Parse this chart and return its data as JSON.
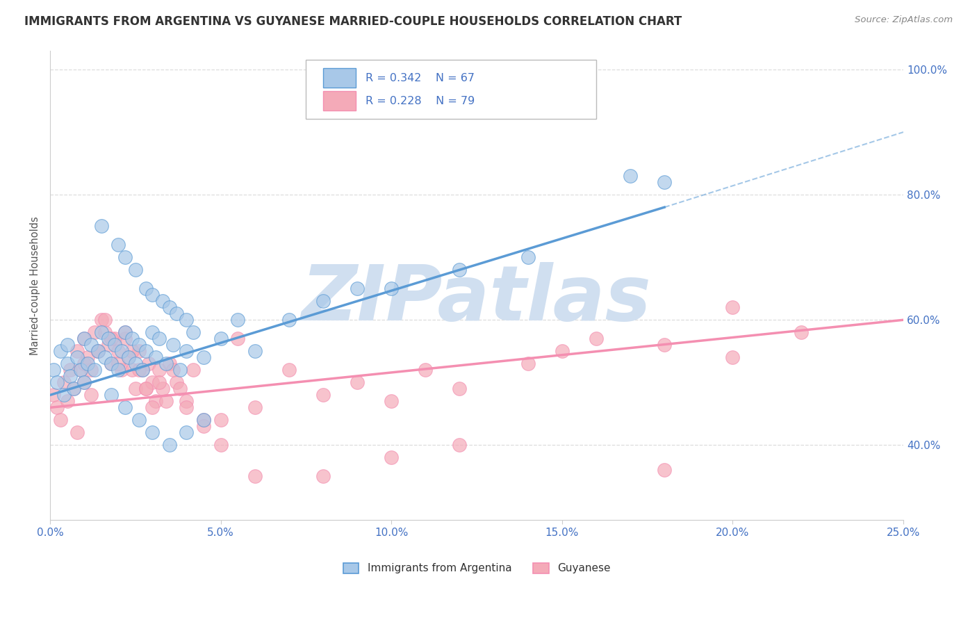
{
  "title": "IMMIGRANTS FROM ARGENTINA VS GUYANESE MARRIED-COUPLE HOUSEHOLDS CORRELATION CHART",
  "source": "Source: ZipAtlas.com",
  "ylabel": "Married-couple Households",
  "y_ticks": [
    40.0,
    60.0,
    80.0,
    100.0
  ],
  "legend_entries": [
    {
      "label": "Immigrants from Argentina",
      "R": "0.342",
      "N": "67",
      "color": "#a8c8e8"
    },
    {
      "label": "Guyanese",
      "R": "0.228",
      "N": "79",
      "color": "#f4aab8"
    }
  ],
  "blue_scatter_x": [
    0.1,
    0.2,
    0.3,
    0.4,
    0.5,
    0.5,
    0.6,
    0.7,
    0.8,
    0.9,
    1.0,
    1.0,
    1.1,
    1.2,
    1.3,
    1.4,
    1.5,
    1.6,
    1.7,
    1.8,
    1.9,
    2.0,
    2.1,
    2.2,
    2.3,
    2.4,
    2.5,
    2.6,
    2.7,
    2.8,
    3.0,
    3.1,
    3.2,
    3.4,
    3.6,
    3.8,
    4.0,
    4.2,
    4.5,
    5.0,
    5.5,
    6.0,
    7.0,
    8.0,
    9.0,
    10.0,
    12.0,
    14.0,
    17.0,
    18.0,
    1.5,
    2.0,
    2.2,
    2.5,
    2.8,
    3.0,
    3.3,
    3.5,
    3.7,
    4.0,
    1.8,
    2.2,
    2.6,
    3.0,
    3.5,
    4.0,
    4.5
  ],
  "blue_scatter_y": [
    52,
    50,
    55,
    48,
    53,
    56,
    51,
    49,
    54,
    52,
    57,
    50,
    53,
    56,
    52,
    55,
    58,
    54,
    57,
    53,
    56,
    52,
    55,
    58,
    54,
    57,
    53,
    56,
    52,
    55,
    58,
    54,
    57,
    53,
    56,
    52,
    55,
    58,
    54,
    57,
    60,
    55,
    60,
    63,
    65,
    65,
    68,
    70,
    83,
    82,
    75,
    72,
    70,
    68,
    65,
    64,
    63,
    62,
    61,
    60,
    48,
    46,
    44,
    42,
    40,
    42,
    44
  ],
  "pink_scatter_x": [
    0.1,
    0.2,
    0.3,
    0.4,
    0.5,
    0.6,
    0.7,
    0.8,
    0.9,
    1.0,
    1.0,
    1.1,
    1.2,
    1.3,
    1.4,
    1.5,
    1.6,
    1.7,
    1.8,
    1.9,
    2.0,
    2.1,
    2.2,
    2.3,
    2.4,
    2.5,
    2.6,
    2.7,
    2.8,
    2.9,
    3.0,
    3.1,
    3.2,
    3.3,
    3.5,
    3.7,
    4.0,
    4.2,
    4.5,
    5.0,
    5.5,
    6.0,
    7.0,
    8.0,
    9.0,
    10.0,
    11.0,
    12.0,
    14.0,
    16.0,
    18.0,
    20.0,
    0.8,
    1.0,
    1.2,
    1.4,
    1.6,
    1.8,
    2.0,
    2.2,
    2.4,
    2.6,
    2.8,
    3.0,
    3.2,
    3.4,
    3.6,
    3.8,
    4.0,
    4.5,
    5.0,
    6.0,
    8.0,
    10.0,
    12.0,
    15.0,
    18.0,
    20.0,
    22.0
  ],
  "pink_scatter_y": [
    48,
    46,
    44,
    50,
    47,
    52,
    49,
    55,
    52,
    50,
    57,
    54,
    52,
    58,
    55,
    60,
    58,
    56,
    53,
    57,
    55,
    52,
    57,
    54,
    52,
    49,
    55,
    52,
    49,
    53,
    50,
    47,
    52,
    49,
    53,
    50,
    47,
    52,
    44,
    44,
    57,
    46,
    52,
    48,
    50,
    47,
    52,
    49,
    53,
    57,
    36,
    62,
    42,
    53,
    48,
    55,
    60,
    57,
    53,
    58,
    55,
    52,
    49,
    46,
    50,
    47,
    52,
    49,
    46,
    43,
    40,
    35,
    35,
    38,
    40,
    55,
    56,
    54,
    58
  ],
  "blue_line_x0": 0.0,
  "blue_line_y0": 48.0,
  "blue_line_x1": 18.0,
  "blue_line_y1": 78.0,
  "blue_dashed_x0": 18.0,
  "blue_dashed_y0": 78.0,
  "blue_dashed_x1": 25.0,
  "blue_dashed_y1": 90.0,
  "pink_line_x0": 0.0,
  "pink_line_y0": 46.0,
  "pink_line_x1": 25.0,
  "pink_line_y1": 60.0,
  "blue_color": "#5b9bd5",
  "pink_color": "#f48fb1",
  "blue_scatter_color": "#a8c8e8",
  "pink_scatter_color": "#f4aab8",
  "grid_color": "#dddddd",
  "axis_label_color": "#4472c4",
  "title_color": "#333333",
  "watermark_color": "#d0dff0",
  "watermark_text": "ZIPatlas",
  "source_color": "#888888",
  "legend_R_color": "#4472c4",
  "xmin": 0.0,
  "xmax": 25.0,
  "ymin": 28.0,
  "ymax": 103.0
}
